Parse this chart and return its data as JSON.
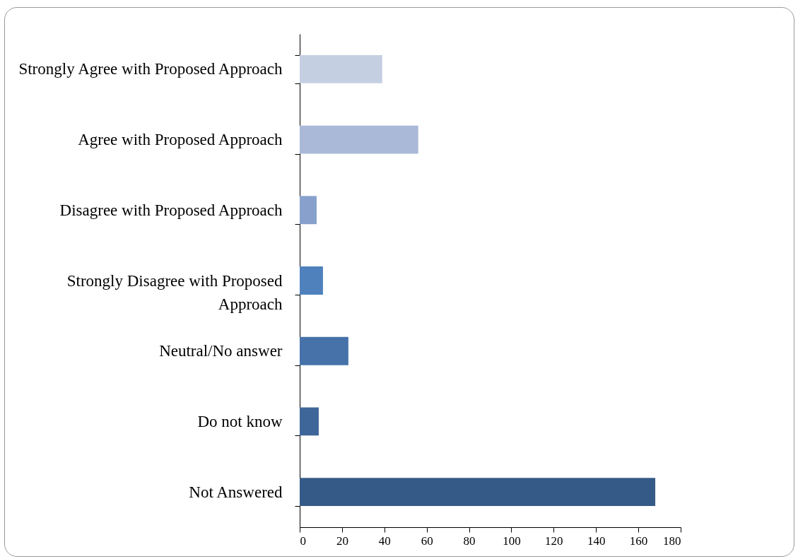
{
  "chart_data": {
    "type": "bar",
    "orientation": "horizontal",
    "categories": [
      "Strongly Agree with Proposed Approach",
      "Agree with Proposed Approach",
      "Disagree with Proposed Approach",
      "Strongly Disagree with Proposed Approach",
      "Neutral/No answer",
      "Do not know",
      "Not Answered"
    ],
    "values": [
      39,
      56,
      8,
      11,
      23,
      9,
      168
    ],
    "colors": [
      "#c4cfe2",
      "#aab9d8",
      "#87a1cc",
      "#4f81bd",
      "#4672a9",
      "#3f6699",
      "#355a87"
    ],
    "xlim": [
      0,
      180
    ],
    "xticks": [
      0,
      20,
      40,
      60,
      80,
      100,
      120,
      140,
      160,
      180
    ]
  }
}
